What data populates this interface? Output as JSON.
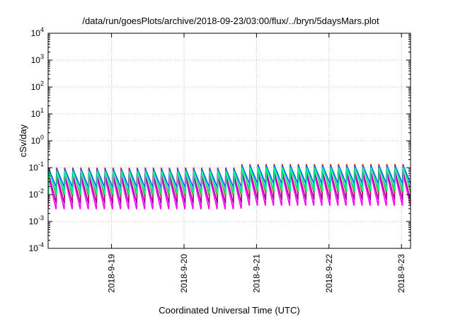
{
  "chart_data": {
    "type": "line",
    "title": "/data/run/goesPlots/archive/2018-09-23/03:00/flux/../bryn/5daysMars.plot",
    "xlabel": "Coordinated Universal Time (UTC)",
    "ylabel": "cSv/day",
    "y_scale": "log",
    "ylim": [
      0.0001,
      10000
    ],
    "y_ticks": [
      {
        "base": "10",
        "exp": "-4"
      },
      {
        "base": "10",
        "exp": "-3"
      },
      {
        "base": "10",
        "exp": "-2"
      },
      {
        "base": "10",
        "exp": "-1"
      },
      {
        "base": "10",
        "exp": "0"
      },
      {
        "base": "10",
        "exp": "1"
      },
      {
        "base": "10",
        "exp": "2"
      },
      {
        "base": "10",
        "exp": "3"
      },
      {
        "base": "10",
        "exp": "4"
      }
    ],
    "y_tick_values": [
      0.0001,
      0.001,
      0.01,
      0.1,
      1,
      10,
      100,
      1000,
      10000
    ],
    "xlim": [
      "2018-09-18T03:00",
      "2018-09-23T03:00"
    ],
    "x_ticks": [
      "2018-9-19",
      "2018-9-20",
      "2018-9-21",
      "2018-9-22",
      "2018-9-23"
    ],
    "grid": true,
    "legend": "none",
    "pattern": "sawtooth",
    "cycles_per_day": 9,
    "series": [
      {
        "color": "#ff00ff",
        "peak": 0.05,
        "trough": 0.003
      },
      {
        "color": "#a000a0",
        "peak": 0.06,
        "trough": 0.005
      },
      {
        "color": "#ff0000",
        "peak": 0.1,
        "trough": 0.009
      },
      {
        "color": "#00c0c0",
        "peak": 0.08,
        "trough": 0.012
      },
      {
        "color": "#0060ff",
        "peak": 0.09,
        "trough": 0.018
      },
      {
        "color": "#00ff80",
        "peak": 0.075,
        "trough": 0.01
      }
    ]
  }
}
